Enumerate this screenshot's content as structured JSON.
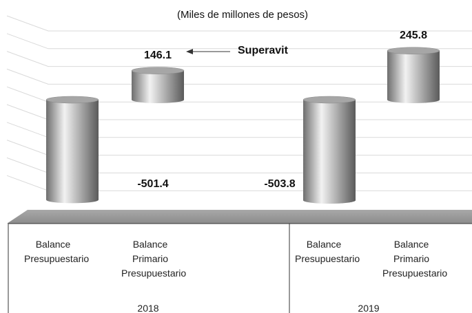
{
  "chart_data": {
    "type": "bar",
    "subtitle": "(Miles de millones de pesos)",
    "groups": [
      {
        "label": "2018",
        "categories": [
          "Balance Presupuestario",
          "Balance Primario Presupuestario"
        ],
        "values": [
          -501.4,
          146.1
        ]
      },
      {
        "label": "2019",
        "categories": [
          "Balance Presupuestario",
          "Balance Primario Presupuestario"
        ],
        "values": [
          -503.8,
          245.8
        ]
      }
    ],
    "annotation": "Superavit",
    "color": "#a6a6a6"
  }
}
